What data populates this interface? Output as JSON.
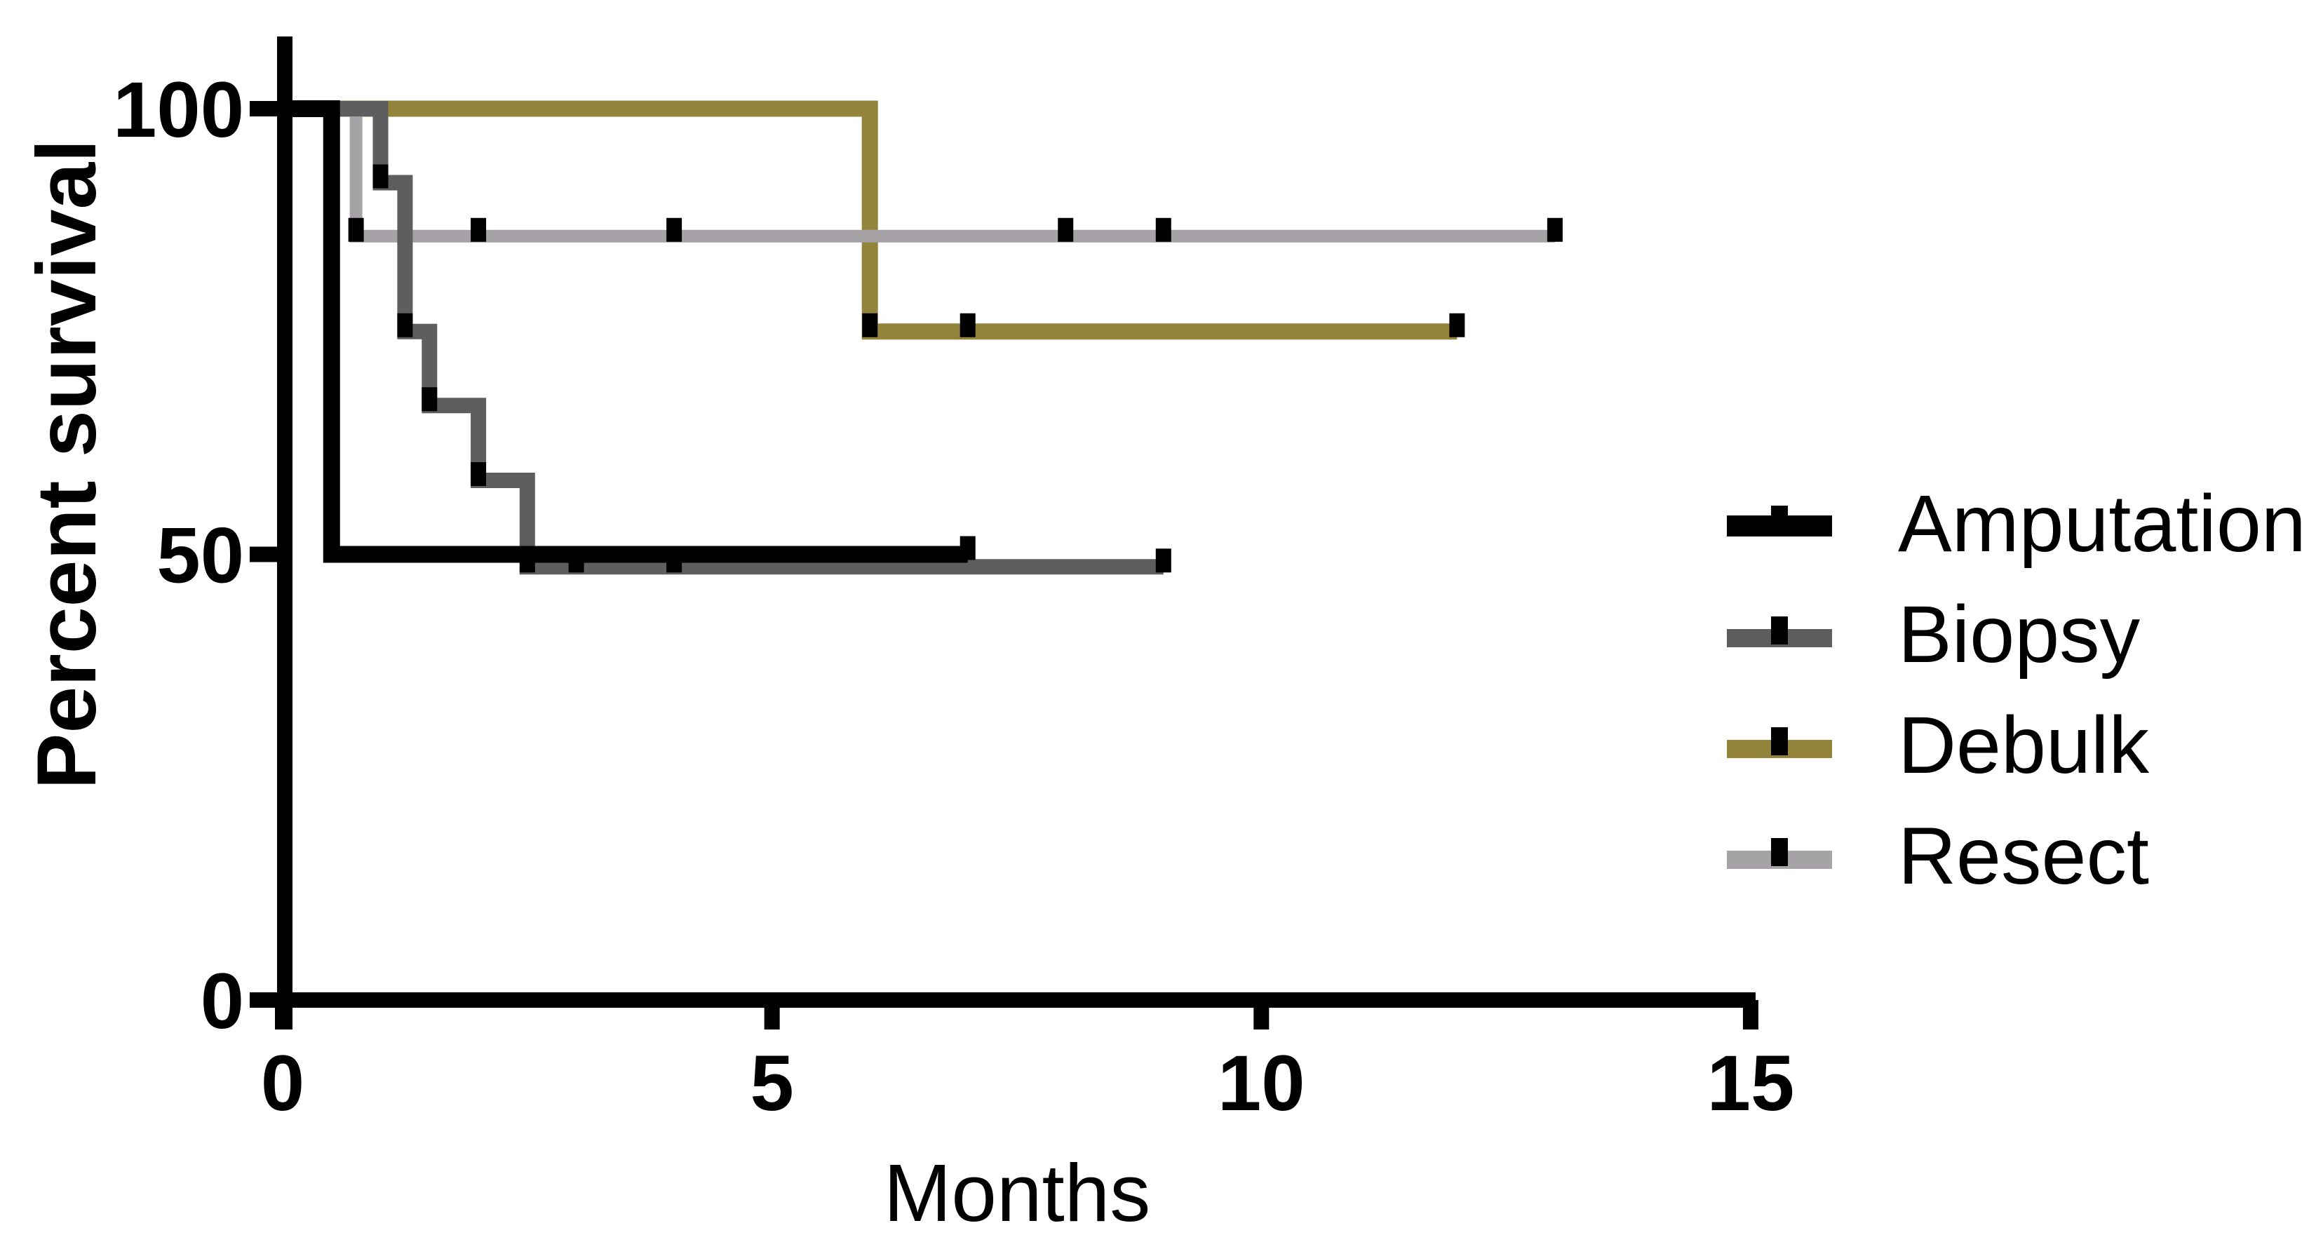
{
  "chart_data": {
    "type": "km_step",
    "title": "",
    "xlabel": "Months",
    "ylabel": "Percent survival",
    "xlim": [
      0,
      15
    ],
    "ylim": [
      0,
      100
    ],
    "x_ticks": [
      {
        "value": 0,
        "label": "0"
      },
      {
        "value": 5,
        "label": "5"
      },
      {
        "value": 10,
        "label": "10"
      },
      {
        "value": 15,
        "label": "15"
      }
    ],
    "y_ticks": [
      {
        "value": 0,
        "label": "0"
      },
      {
        "value": 50,
        "label": "50"
      },
      {
        "value": 100,
        "label": "100"
      }
    ],
    "grid": false,
    "legend_position": "right",
    "marker_shape": "vertical-tick",
    "series": [
      {
        "name": "Amputation",
        "color": "#000000",
        "line_width": 24,
        "steps": [
          [
            0,
            100
          ],
          [
            0.5,
            100
          ],
          [
            0.5,
            50
          ],
          [
            7,
            50
          ]
        ],
        "markers": [
          [
            7,
            50
          ]
        ]
      },
      {
        "name": "Biopsy",
        "color": "#5E5E5E",
        "line_width": 22,
        "steps": [
          [
            0,
            100
          ],
          [
            1,
            100
          ],
          [
            1,
            91.7
          ],
          [
            1.25,
            91.7
          ],
          [
            1.25,
            75
          ],
          [
            1.5,
            75
          ],
          [
            1.5,
            66.7
          ],
          [
            2,
            66.7
          ],
          [
            2,
            58.3
          ],
          [
            2.5,
            58.3
          ],
          [
            2.5,
            48.6
          ],
          [
            9,
            48.6
          ]
        ],
        "markers": [
          [
            1,
            91.7
          ],
          [
            1.25,
            75
          ],
          [
            1.5,
            66.7
          ],
          [
            2,
            58.3
          ],
          [
            2.5,
            48.6
          ],
          [
            3,
            48.6
          ],
          [
            4,
            48.6
          ],
          [
            9,
            48.6
          ]
        ]
      },
      {
        "name": "Debulk",
        "color": "#93833B",
        "line_width": 23,
        "steps": [
          [
            0,
            100
          ],
          [
            6,
            100
          ],
          [
            6,
            75
          ],
          [
            12,
            75
          ]
        ],
        "markers": [
          [
            6,
            75
          ],
          [
            7,
            75
          ],
          [
            12,
            75
          ]
        ]
      },
      {
        "name": "Resect",
        "color": "#A5A3A6",
        "line_width": 18,
        "steps": [
          [
            0,
            100
          ],
          [
            0.75,
            100
          ],
          [
            0.75,
            85.7
          ],
          [
            13,
            85.7
          ]
        ],
        "markers": [
          [
            0.75,
            85.7
          ],
          [
            2,
            85.7
          ],
          [
            4,
            85.7
          ],
          [
            8,
            85.7
          ],
          [
            9,
            85.7
          ],
          [
            13,
            85.7
          ]
        ]
      }
    ],
    "draw_order": [
      "Debulk",
      "Resect",
      "Biopsy",
      "Amputation"
    ]
  }
}
